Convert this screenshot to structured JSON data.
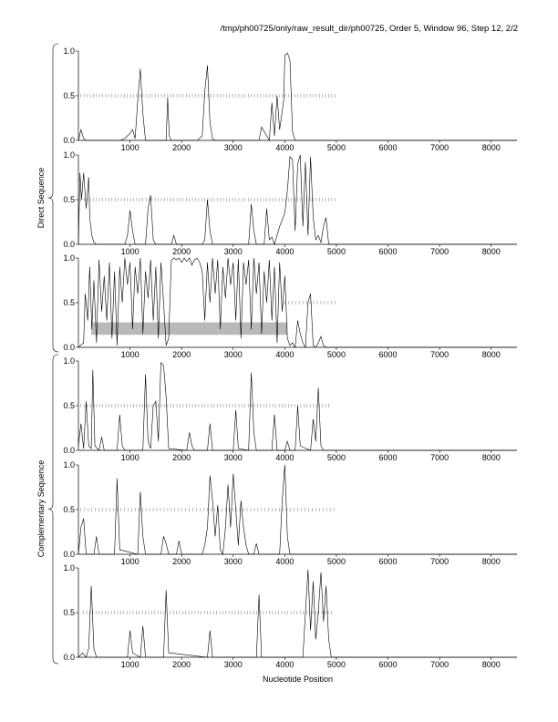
{
  "header": {
    "title": "/tmp/ph00725/only/raw_result_dir/ph00725, Order 5, Window 96, Step 12, 2/2"
  },
  "labels": {
    "direct": "Direct Sequence",
    "complementary": "Complementary Sequence",
    "xlabel": "Nucleotide Position"
  },
  "colors": {
    "line": "#000000",
    "highlight": "#b9b9b9"
  },
  "chart_data": [
    {
      "type": "line",
      "group": "Direct Sequence",
      "panel": 1,
      "xlim": [
        0,
        8500
      ],
      "ylim": [
        0,
        1
      ],
      "xticks": [
        1000,
        2000,
        3000,
        4000,
        5000,
        6000,
        7000,
        8000
      ],
      "yticks": [
        "0.0",
        "0.5",
        "1.0"
      ],
      "tick_marks_at_half": {
        "from": 50,
        "to": 5000,
        "step": 60
      },
      "series": [
        {
          "x": [
            0,
            50,
            100,
            150,
            800,
            900,
            1000,
            1050,
            1100,
            1150,
            1200,
            1250,
            1300,
            1700,
            1730,
            1760,
            1800,
            2300,
            2400,
            2450,
            2500,
            2550,
            2600,
            2650,
            3500,
            3550,
            3700,
            3750,
            3800,
            3850,
            3900,
            3980,
            4000,
            4050,
            4100,
            4150,
            4200,
            8500
          ],
          "y": [
            0,
            0.12,
            0.02,
            0,
            0,
            0.02,
            0.08,
            0.12,
            0.02,
            0.45,
            0.8,
            0.3,
            0,
            0,
            0.48,
            0.05,
            0,
            0,
            0.05,
            0.55,
            0.84,
            0.2,
            0.02,
            0,
            0,
            0.15,
            0,
            0.42,
            0.05,
            0.5,
            0.12,
            0.45,
            0.95,
            0.98,
            0.9,
            0.1,
            0,
            0
          ]
        }
      ]
    },
    {
      "type": "line",
      "group": "Direct Sequence",
      "panel": 2,
      "xlim": [
        0,
        8500
      ],
      "ylim": [
        0,
        1
      ],
      "xticks": [
        1000,
        2000,
        3000,
        4000,
        5000,
        6000,
        7000,
        8000
      ],
      "yticks": [
        "0.0",
        "0.5",
        "1.0"
      ],
      "tick_marks_at_half": {
        "from": 50,
        "to": 5000,
        "step": 60
      },
      "series": [
        {
          "x": [
            0,
            30,
            60,
            100,
            150,
            200,
            220,
            260,
            300,
            350,
            900,
            950,
            1000,
            1050,
            1100,
            1300,
            1350,
            1400,
            1450,
            1500,
            1800,
            1850,
            1900,
            2400,
            2450,
            2500,
            2550,
            2600,
            3300,
            3350,
            3400,
            3450,
            3600,
            3650,
            3700,
            3750,
            3800,
            3900,
            4000,
            4050,
            4100,
            4150,
            4200,
            4250,
            4300,
            4350,
            4400,
            4450,
            4500,
            4550,
            4600,
            4650,
            4700,
            4750,
            4800,
            4850,
            8500
          ],
          "y": [
            0,
            0.8,
            0.5,
            0.8,
            0.4,
            0.75,
            0.3,
            0.1,
            0.02,
            0,
            0,
            0.1,
            0.38,
            0.15,
            0,
            0,
            0.4,
            0.55,
            0.05,
            0,
            0,
            0.1,
            0,
            0,
            0.05,
            0.5,
            0.15,
            0,
            0,
            0.45,
            0.15,
            0,
            0,
            0.4,
            0.05,
            0.08,
            0,
            0.2,
            0.35,
            0.6,
            0.98,
            0.95,
            0.15,
            0.9,
            1.0,
            0.2,
            0.92,
            0.1,
            0.98,
            0.3,
            0.05,
            0.1,
            0.02,
            0.2,
            0.3,
            0,
            0
          ]
        }
      ]
    },
    {
      "type": "line",
      "group": "Direct Sequence",
      "panel": 3,
      "xlim": [
        0,
        8500
      ],
      "ylim": [
        0,
        1
      ],
      "xticks": [
        1000,
        2000,
        3000,
        4000,
        5000,
        6000,
        7000,
        8000
      ],
      "yticks": [
        "0.0",
        "0.5",
        "1.0"
      ],
      "tick_marks_at_half": {
        "from": 4000,
        "to": 5000,
        "step": 70
      },
      "highlight": {
        "x0": 250,
        "x1": 4050,
        "y0": 0.14,
        "y1": 0.28
      },
      "series": [
        {
          "x": [
            0,
            100,
            130,
            180,
            220,
            260,
            300,
            350,
            400,
            450,
            500,
            550,
            600,
            650,
            700,
            750,
            800,
            850,
            900,
            950,
            1000,
            1050,
            1100,
            1150,
            1200,
            1250,
            1300,
            1350,
            1400,
            1450,
            1500,
            1550,
            1600,
            1650,
            1700,
            1750,
            1800,
            1850,
            1900,
            1950,
            2000,
            2050,
            2100,
            2150,
            2200,
            2250,
            2300,
            2350,
            2400,
            2450,
            2500,
            2550,
            2600,
            2650,
            2700,
            2750,
            2800,
            2850,
            2900,
            2950,
            3000,
            3050,
            3100,
            3150,
            3200,
            3250,
            3300,
            3350,
            3400,
            3450,
            3500,
            3550,
            3600,
            3650,
            3700,
            3750,
            3800,
            3850,
            3900,
            3950,
            4000,
            4050,
            4100,
            4150,
            4200,
            4250,
            4300,
            4350,
            4400,
            4450,
            4500,
            4550,
            4600,
            4650,
            4700,
            4750,
            4800,
            8500
          ],
          "y": [
            0,
            0.05,
            0.6,
            0.3,
            0.9,
            0.2,
            0.75,
            0.05,
            0.98,
            0.4,
            0.8,
            0.3,
            0.95,
            0.1,
            0.85,
            0.02,
            0.9,
            0.5,
            1.0,
            0.7,
            0.95,
            0.2,
            0.9,
            0.6,
            1.0,
            0.15,
            0.85,
            0.55,
            0.98,
            0.3,
            0.9,
            0.1,
            0.95,
            0.5,
            0.02,
            0.1,
            0.97,
            1.0,
            0.98,
            1.0,
            0.95,
            1.0,
            0.96,
            1.0,
            0.92,
            0.98,
            1.0,
            0.95,
            0.85,
            0.3,
            0.95,
            0.5,
            1.0,
            0.6,
            0.98,
            0.2,
            0.9,
            0.55,
            1.0,
            0.7,
            0.95,
            0.3,
            0.99,
            0.1,
            0.95,
            0.7,
            0.98,
            0.2,
            1.0,
            0.6,
            0.95,
            0.15,
            0.85,
            0.5,
            0.98,
            0.3,
            0.9,
            0.05,
            0.95,
            0.4,
            0.8,
            0.1,
            0.02,
            0.05,
            0,
            0.3,
            0.15,
            0.05,
            0,
            0.5,
            0.6,
            0.02,
            0,
            0.05,
            0.12,
            0.02,
            0,
            0
          ]
        }
      ]
    },
    {
      "type": "line",
      "group": "Complementary Sequence",
      "panel": 4,
      "xlim": [
        0,
        8500
      ],
      "ylim": [
        0,
        1
      ],
      "xticks": [
        1000,
        2000,
        3000,
        4000,
        5000,
        6000,
        7000,
        8000
      ],
      "yticks": [
        "0.0",
        "0.5",
        "1.0"
      ],
      "tick_marks_at_half": {
        "from": 50,
        "to": 4900,
        "step": 60
      },
      "series": [
        {
          "x": [
            0,
            50,
            100,
            150,
            200,
            250,
            280,
            320,
            400,
            450,
            500,
            750,
            800,
            850,
            900,
            1250,
            1300,
            1350,
            1400,
            1450,
            1500,
            1550,
            1600,
            1650,
            1700,
            1750,
            2100,
            2150,
            2200,
            2250,
            2500,
            2550,
            2600,
            3000,
            3050,
            3100,
            3300,
            3350,
            3400,
            3450,
            3750,
            3800,
            3850,
            4000,
            4050,
            4100,
            4200,
            4250,
            4300,
            4500,
            4550,
            4600,
            4650,
            4700,
            4750,
            8500
          ],
          "y": [
            0.05,
            0.3,
            0.02,
            0.55,
            0.05,
            0.02,
            0.9,
            0.05,
            0,
            0.15,
            0,
            0,
            0.4,
            0.05,
            0,
            0,
            0.85,
            0.1,
            0.02,
            0.5,
            0.55,
            0.1,
            0.98,
            0.95,
            0.6,
            0.02,
            0,
            0.2,
            0.05,
            0,
            0,
            0.3,
            0,
            0,
            0.45,
            0.02,
            0,
            0.87,
            0.2,
            0,
            0,
            0.4,
            0,
            0,
            0.1,
            0,
            0,
            0.5,
            0.05,
            0,
            0.35,
            0.1,
            0.7,
            0.05,
            0,
            0
          ]
        }
      ]
    },
    {
      "type": "line",
      "group": "Complementary Sequence",
      "panel": 5,
      "xlim": [
        0,
        8500
      ],
      "ylim": [
        0,
        1
      ],
      "xticks": [
        1000,
        2000,
        3000,
        4000,
        5000,
        6000,
        7000,
        8000
      ],
      "yticks": [
        "0.0",
        "0.5",
        "1.0"
      ],
      "tick_marks_at_half": {
        "from": 50,
        "to": 5000,
        "step": 70
      },
      "series": [
        {
          "x": [
            0,
            50,
            100,
            150,
            300,
            350,
            400,
            700,
            750,
            800,
            1150,
            1200,
            1250,
            1300,
            1600,
            1650,
            1700,
            1750,
            1900,
            1950,
            2000,
            2400,
            2450,
            2500,
            2550,
            2600,
            2650,
            2700,
            2750,
            2800,
            2850,
            2900,
            2950,
            3000,
            3050,
            3100,
            3150,
            3200,
            3250,
            3300,
            3400,
            3450,
            3500,
            3900,
            3950,
            4000,
            4050,
            4100,
            8500
          ],
          "y": [
            0,
            0.3,
            0.4,
            0,
            0,
            0.2,
            0,
            0,
            0.85,
            0.05,
            0,
            0.7,
            0.2,
            0,
            0,
            0.2,
            0.12,
            0,
            0,
            0.15,
            0,
            0,
            0.1,
            0.3,
            0.88,
            0.6,
            0.2,
            0.55,
            0.05,
            0,
            0.3,
            0.78,
            0.3,
            0.9,
            0.5,
            0.1,
            0.6,
            0.3,
            0.1,
            0,
            0,
            0.12,
            0,
            0,
            0.6,
            1.0,
            0.2,
            0,
            0
          ]
        }
      ]
    },
    {
      "type": "line",
      "group": "Complementary Sequence",
      "panel": 6,
      "xlim": [
        0,
        8500
      ],
      "ylim": [
        0,
        1
      ],
      "xticks": [
        1000,
        2000,
        3000,
        4000,
        5000,
        6000,
        7000,
        8000
      ],
      "yticks": [
        "0.0",
        "0.5",
        "1.0"
      ],
      "tick_marks_at_half": {
        "from": 100,
        "to": 4900,
        "step": 60
      },
      "series": [
        {
          "x": [
            0,
            80,
            150,
            200,
            250,
            300,
            350,
            950,
            1000,
            1050,
            1200,
            1250,
            1300,
            1650,
            1700,
            1750,
            2500,
            2550,
            2600,
            3450,
            3500,
            3550,
            4350,
            4400,
            4450,
            4500,
            4550,
            4600,
            4650,
            4700,
            4750,
            4800,
            4850,
            4900,
            8500
          ],
          "y": [
            0,
            0.05,
            0,
            0.1,
            0.8,
            0.1,
            0,
            0,
            0.3,
            0.05,
            0,
            0.35,
            0,
            0,
            0.75,
            0.05,
            0,
            0.3,
            0,
            0,
            0.7,
            0,
            0,
            0.5,
            0.98,
            0.3,
            0.85,
            0.2,
            0.5,
            0.95,
            0.4,
            0.8,
            0.2,
            0,
            0
          ]
        }
      ]
    }
  ]
}
